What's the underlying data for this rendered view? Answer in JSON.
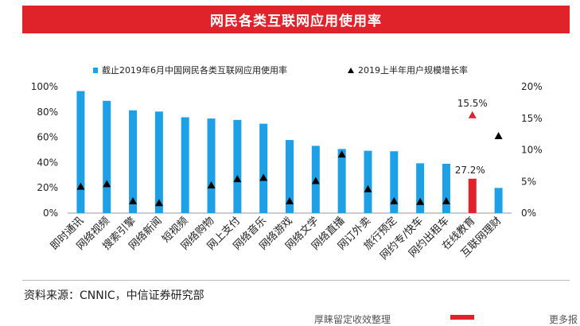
{
  "title": "网民各类互联网应用使用率",
  "source": "资料来源：CNNIC，中信证券研究部",
  "footer_fragments": [
    "厚睐留定收效整理",
    "更多报"
  ],
  "colors": {
    "bar": "#1ea0e6",
    "highlight": "#e0222b",
    "triangle": "#000000",
    "title_bg": "#e0222b"
  },
  "chart_data": {
    "type": "bar",
    "categories": [
      "即时通讯",
      "网络视频",
      "搜索引擎",
      "网络新闻",
      "短视频",
      "网络购物",
      "网上支付",
      "网络音乐",
      "网络游戏",
      "网络文学",
      "网络直播",
      "网订外卖",
      "旅行预定",
      "网约专/快车",
      "网约出租车",
      "在线教育",
      "互联网理财"
    ],
    "series": [
      {
        "name": "截止2019年6月中国网民各类互联网应用使用率",
        "axis": "left",
        "marker": "bar",
        "values": [
          96.5,
          88.8,
          81.3,
          80.3,
          75.8,
          74.8,
          73.7,
          70.7,
          57.8,
          53.2,
          50.7,
          49.3,
          48.9,
          39.4,
          39.0,
          27.2,
          19.9
        ]
      },
      {
        "name": "2019上半年用户规模增长率",
        "axis": "right",
        "marker": "triangle",
        "values": [
          4.2,
          4.6,
          1.9,
          1.6,
          null,
          4.4,
          5.4,
          5.6,
          1.9,
          5.1,
          9.3,
          3.8,
          1.9,
          1.8,
          1.9,
          15.5,
          12.2
        ]
      }
    ],
    "highlight": {
      "index": 15,
      "bar_label": "27.2%",
      "triangle_label": "15.5%"
    },
    "y_left": {
      "min": 0,
      "max": 100,
      "ticks": [
        "0%",
        "20%",
        "40%",
        "60%",
        "80%",
        "100%"
      ]
    },
    "y_right": {
      "min": 0,
      "max": 20,
      "ticks": [
        "0%",
        "5%",
        "10%",
        "15%",
        "20%"
      ]
    },
    "legend_position": "top",
    "grid": false
  }
}
